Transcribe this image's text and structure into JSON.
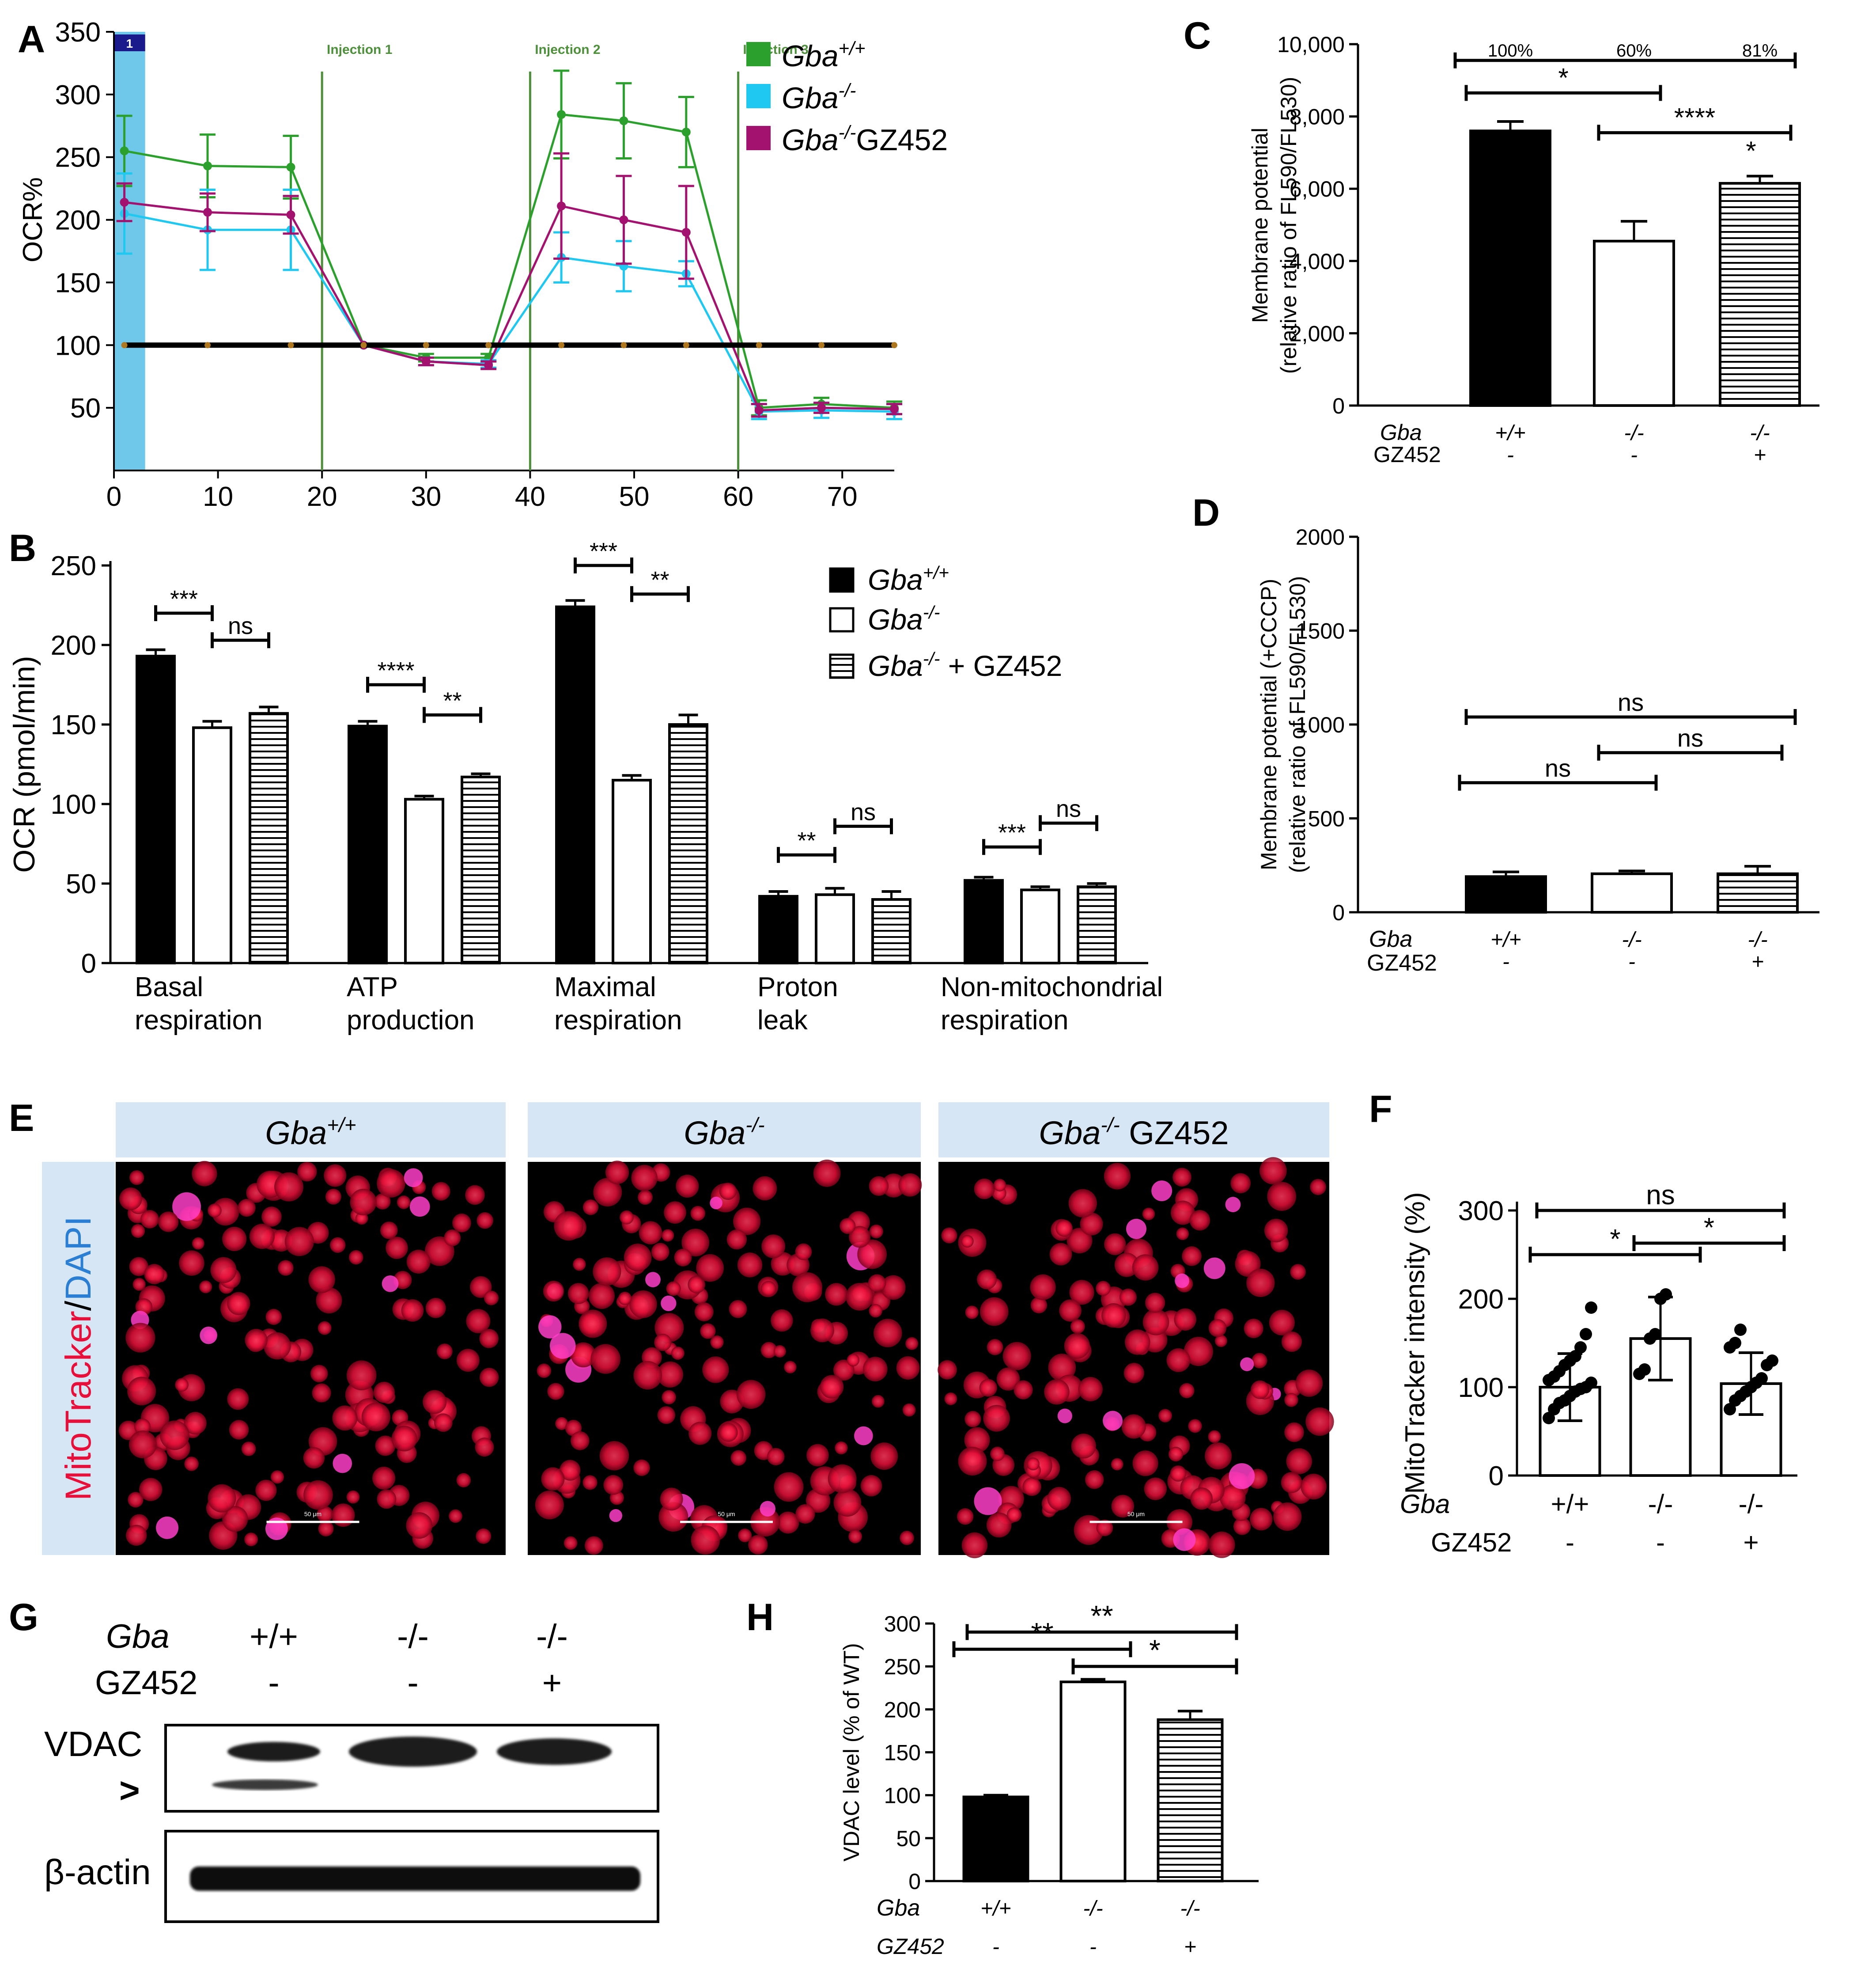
{
  "colors": {
    "wt": "#2ca02c",
    "ko": "#1ec8f0",
    "gz": "#a2126e",
    "black": "#000000",
    "blue_band": "#6fc8ea",
    "injection": "#4d8f3a",
    "cell_red": "#e8103a",
    "panel_header": "#d6e6f4",
    "dapi_blue": "#2a7fd5"
  },
  "panels": {
    "A": "A",
    "B": "B",
    "C": "C",
    "D": "D",
    "E": "E",
    "F": "F",
    "G": "G",
    "H": "H"
  },
  "genotype": {
    "gba": "Gba",
    "wt_sup": "+/+",
    "ko_sup": "-/-",
    "gz452": "GZ452",
    "wt": "+/+",
    "ko": "-/-",
    "minus": "-",
    "plus": "+",
    "plus_gz": "+ GZ452"
  },
  "chart_data": [
    {
      "panel": "A",
      "type": "line",
      "ylabel": "OCR%",
      "ylim": [
        0,
        350
      ],
      "xlim": [
        0,
        75
      ],
      "yticks": [
        50,
        100,
        150,
        200,
        250,
        300,
        350
      ],
      "xticks": [
        0,
        10,
        20,
        30,
        40,
        50,
        60,
        70
      ],
      "annotations": [
        "1",
        "Injection 1",
        "Injection 2",
        "Injection 3"
      ],
      "injections_x": [
        20,
        40,
        60
      ],
      "x": [
        1,
        9,
        17,
        24,
        30,
        36,
        43,
        49,
        55,
        62,
        68,
        75
      ],
      "series": [
        {
          "name": "Gba+/+",
          "values": [
            255,
            243,
            242,
            100,
            90,
            90,
            284,
            279,
            270,
            50,
            53,
            50
          ],
          "err": [
            28,
            25,
            25,
            0,
            3,
            3,
            35,
            30,
            28,
            6,
            5,
            5
          ]
        },
        {
          "name": "Gba-/-",
          "values": [
            205,
            192,
            192,
            100,
            87,
            85,
            170,
            163,
            157,
            47,
            48,
            47
          ],
          "err": [
            32,
            32,
            32,
            0,
            3,
            3,
            20,
            20,
            10,
            6,
            6,
            6
          ]
        },
        {
          "name": "Gba-/-GZ452",
          "values": [
            214,
            206,
            204,
            100,
            87,
            84,
            211,
            200,
            190,
            48,
            50,
            49
          ],
          "err": [
            15,
            15,
            15,
            0,
            3,
            3,
            42,
            35,
            37,
            5,
            4,
            4
          ]
        },
        {
          "name": "baseline",
          "values": [
            100,
            100,
            100,
            100,
            100,
            100,
            100,
            100,
            100,
            100,
            100,
            100
          ]
        }
      ]
    },
    {
      "panel": "B",
      "type": "bar",
      "ylabel": "OCR (pmol/min)",
      "ylim": [
        0,
        250
      ],
      "yticks": [
        0,
        50,
        100,
        150,
        200,
        250
      ],
      "categories": [
        "Basal respiration",
        "ATP production",
        "Maximal respiration",
        "Proton leak",
        "Non-mitochondrial respiration"
      ],
      "category_lines": [
        [
          "Basal",
          "respiration"
        ],
        [
          "ATP",
          "production"
        ],
        [
          "Maximal",
          "respiration"
        ],
        [
          "Proton",
          "leak"
        ],
        [
          "Non-mitochondrial",
          "respiration"
        ]
      ],
      "legend": [
        "Gba+/+",
        "Gba-/-",
        "Gba-/- + GZ452"
      ],
      "series": [
        {
          "name": "Gba+/+",
          "values": [
            193,
            149,
            224,
            42,
            52
          ],
          "err": [
            4,
            3,
            4,
            3,
            2
          ]
        },
        {
          "name": "Gba-/-",
          "values": [
            148,
            103,
            115,
            43,
            46
          ],
          "err": [
            4,
            2,
            3,
            4,
            2
          ]
        },
        {
          "name": "Gba-/- + GZ452",
          "values": [
            157,
            117,
            150,
            40,
            48
          ],
          "err": [
            4,
            2,
            6,
            5,
            2
          ]
        }
      ],
      "significance": [
        {
          "cat": 0,
          "pair": [
            0,
            1
          ],
          "label": "***",
          "y": 220
        },
        {
          "cat": 0,
          "pair": [
            1,
            2
          ],
          "label": "ns",
          "y": 203
        },
        {
          "cat": 1,
          "pair": [
            0,
            1
          ],
          "label": "****",
          "y": 175
        },
        {
          "cat": 1,
          "pair": [
            1,
            2
          ],
          "label": "**",
          "y": 156
        },
        {
          "cat": 2,
          "pair": [
            0,
            1
          ],
          "label": "***",
          "y": 250
        },
        {
          "cat": 2,
          "pair": [
            1,
            2
          ],
          "label": "**",
          "y": 232
        },
        {
          "cat": 3,
          "pair": [
            0,
            1
          ],
          "label": "**",
          "y": 68
        },
        {
          "cat": 3,
          "pair": [
            1,
            2
          ],
          "label": "ns",
          "y": 86
        },
        {
          "cat": 4,
          "pair": [
            0,
            1
          ],
          "label": "***",
          "y": 73
        },
        {
          "cat": 4,
          "pair": [
            1,
            2
          ],
          "label": "ns",
          "y": 88
        }
      ]
    },
    {
      "panel": "C",
      "type": "bar",
      "ylabel": [
        "Membrane potential",
        "(relative ratio of FL590/FL530)"
      ],
      "ylim": [
        0,
        10000
      ],
      "yticks": [
        "0",
        "2,000",
        "4,000",
        "6,000",
        "8,000",
        "10,000"
      ],
      "categories": [
        "+/+",
        "-/-",
        "-/-"
      ],
      "gz452": [
        "-",
        "-",
        "+"
      ],
      "values": [
        7600,
        4550,
        6150
      ],
      "err": [
        260,
        550,
        200
      ],
      "percent_labels": [
        "100%",
        "60%",
        "81%"
      ],
      "significance": [
        {
          "pair": [
            0,
            2
          ],
          "label": "",
          "y": 9550
        },
        {
          "pair": [
            0,
            1
          ],
          "label": "*",
          "y": 8650
        },
        {
          "pair": [
            1,
            2
          ],
          "label": "****",
          "y": 7550
        },
        {
          "pair": [
            2,
            2
          ],
          "label": "*",
          "y": 6800
        }
      ]
    },
    {
      "panel": "D",
      "type": "bar",
      "ylabel": [
        "Membrane potential  (+CCCP)",
        "(relative ratio of FL590/FL530)"
      ],
      "ylim": [
        0,
        2000
      ],
      "yticks": [
        "0",
        "500",
        "1000",
        "1500",
        "2000"
      ],
      "categories": [
        "+/+",
        "-/-",
        "-/-"
      ],
      "gz452": [
        "-",
        "-",
        "+"
      ],
      "values": [
        190,
        205,
        205
      ],
      "err": [
        25,
        15,
        40
      ],
      "significance": [
        {
          "pair": [
            0,
            2
          ],
          "label": "ns",
          "y": 1040
        },
        {
          "pair": [
            1,
            2
          ],
          "label": "ns",
          "y": 850
        },
        {
          "pair": [
            0,
            1
          ],
          "label": "ns",
          "y": 690
        }
      ]
    },
    {
      "panel": "F",
      "type": "bar",
      "ylabel": "MitoTracker intensity (%)",
      "ylim": [
        0,
        300
      ],
      "yticks": [
        0,
        100,
        200,
        300
      ],
      "categories": [
        "+/+",
        "-/-",
        "-/-"
      ],
      "gz452": [
        "-",
        "-",
        "+"
      ],
      "values": [
        100,
        155,
        104
      ],
      "err": [
        38,
        47,
        35
      ],
      "points": [
        [
          65,
          75,
          82,
          85,
          90,
          95,
          98,
          100,
          105,
          108,
          112,
          118,
          125,
          130,
          135,
          145,
          160,
          190
        ],
        [
          115,
          120,
          155,
          160,
          200,
          205
        ],
        [
          75,
          85,
          90,
          95,
          100,
          105,
          110,
          125,
          130,
          145,
          150,
          165
        ]
      ],
      "significance": [
        {
          "pair": [
            0,
            2
          ],
          "label": "ns",
          "y": 300
        },
        {
          "pair": [
            0,
            1
          ],
          "label": "*",
          "y": 250
        },
        {
          "pair": [
            1,
            2
          ],
          "label": "*",
          "y": 263
        }
      ]
    },
    {
      "panel": "H",
      "type": "bar",
      "ylabel": "VDAC level  (% of  WT)",
      "ylim": [
        0,
        300
      ],
      "yticks": [
        0,
        50,
        100,
        150,
        200,
        250,
        300
      ],
      "categories": [
        "+/+",
        "-/-",
        "-/-"
      ],
      "gz452": [
        "-",
        "-",
        "+"
      ],
      "values": [
        98,
        232,
        188
      ],
      "err": [
        2,
        3,
        10
      ],
      "significance": [
        {
          "pair": [
            0,
            2
          ],
          "label": "**",
          "y": 290
        },
        {
          "pair": [
            0,
            1
          ],
          "label": "**",
          "y": 270
        },
        {
          "pair": [
            1,
            2
          ],
          "label": "*",
          "y": 250
        }
      ]
    }
  ],
  "panel_e": {
    "columns": [
      "Gba+/+",
      "Gba-/-",
      "Gba-/- GZ452"
    ],
    "stain_red": "MitoTracker",
    "stain_sep": "/",
    "stain_blue": "DAPI",
    "scale_bar": "50 μm"
  },
  "panel_g": {
    "row_gba": "Gba",
    "row_gz": "GZ452",
    "lanes_gba": [
      "+/+",
      "-/-",
      "-/-"
    ],
    "lanes_gz": [
      "-",
      "-",
      "+"
    ],
    "vdac": "VDAC",
    "arrow": ">",
    "actin": "β-actin"
  }
}
